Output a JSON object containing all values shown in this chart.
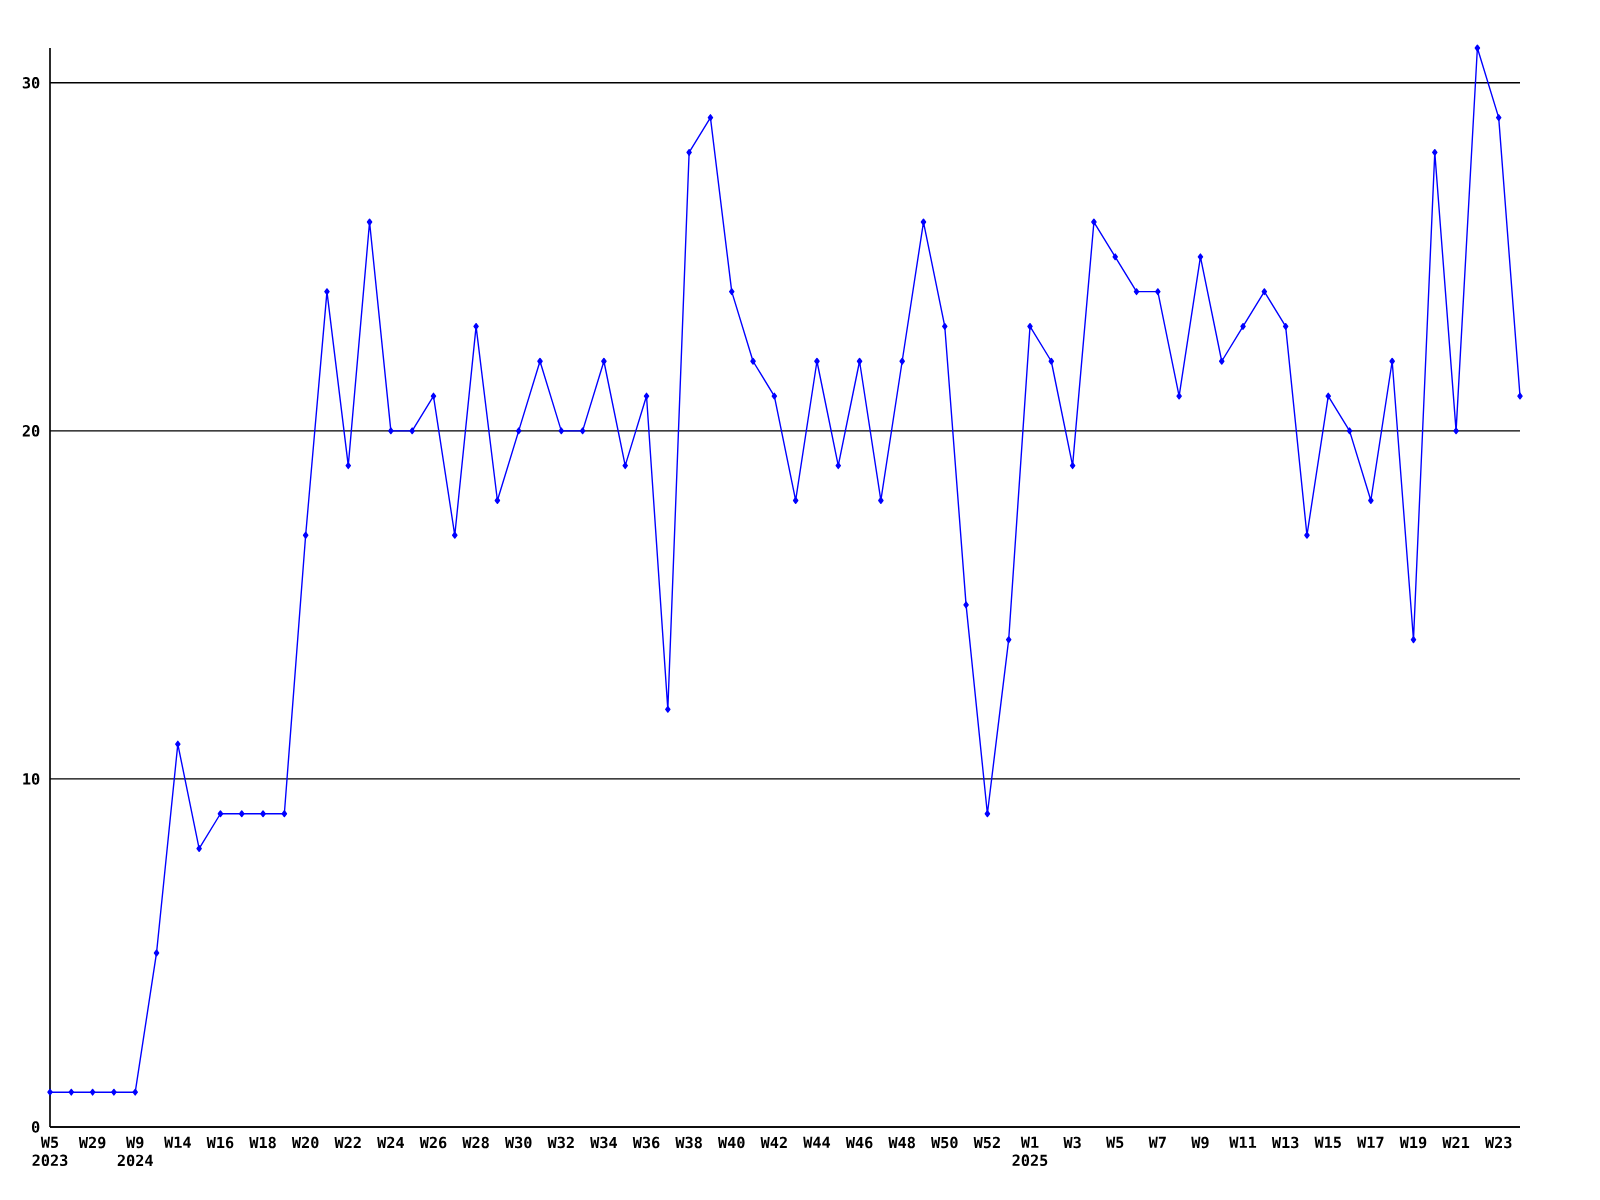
{
  "chart_data": {
    "type": "line",
    "categories": [
      "W5 2023",
      null,
      "W29",
      null,
      "W9 2024",
      null,
      "W14",
      null,
      "W16",
      null,
      "W18",
      null,
      "W20",
      null,
      "W22",
      null,
      "W24",
      null,
      "W26",
      null,
      "W28",
      null,
      "W30",
      null,
      "W32",
      null,
      "W34",
      null,
      "W36",
      null,
      "W38",
      null,
      "W40",
      null,
      "W42",
      null,
      "W44",
      null,
      "W46",
      null,
      "W48",
      null,
      "W50",
      null,
      "W52",
      null,
      "W1 2025",
      null,
      "W3",
      null,
      "W5",
      null,
      "W7",
      null,
      "W9",
      null,
      "W11",
      null,
      "W13",
      null,
      "W15",
      null,
      "W17",
      null,
      "W19",
      null,
      "W21",
      null,
      "W23",
      null
    ],
    "values": [
      1,
      1,
      1,
      1,
      1,
      5,
      11,
      8,
      9,
      9,
      9,
      9,
      17,
      24,
      19,
      26,
      20,
      20,
      21,
      17,
      23,
      18,
      20,
      22,
      20,
      20,
      22,
      19,
      21,
      12,
      28,
      29,
      24,
      22,
      21,
      18,
      22,
      19,
      22,
      18,
      22,
      26,
      23,
      15,
      9,
      14,
      23,
      22,
      19,
      26,
      25,
      24,
      24,
      21,
      25,
      22,
      23,
      24,
      23,
      17,
      21,
      20,
      18,
      22,
      14,
      28,
      20,
      31,
      29,
      21
    ],
    "color": "#0000ff",
    "ylim": [
      0,
      31
    ],
    "yticks": [
      0,
      10,
      20,
      30
    ],
    "grid": "y",
    "marker": "diamond",
    "line_style": "solid"
  }
}
